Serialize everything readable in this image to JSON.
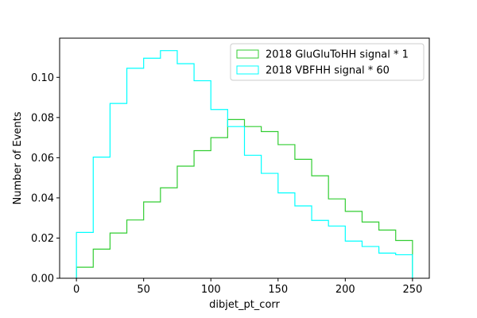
{
  "chart_data": {
    "type": "histogram-step",
    "title": "",
    "xlabel": "dibjet_pt_corr",
    "ylabel": "Number of Events",
    "xlim": [
      -12.5,
      262.5
    ],
    "ylim": [
      0.0,
      0.1195
    ],
    "xticks": [
      0,
      50,
      100,
      150,
      200,
      250
    ],
    "yticks": [
      0.0,
      0.02,
      0.04,
      0.06,
      0.08,
      0.1
    ],
    "xtick_labels": [
      "0",
      "50",
      "100",
      "150",
      "200",
      "250"
    ],
    "ytick_labels": [
      "0.00",
      "0.02",
      "0.04",
      "0.06",
      "0.08",
      "0.10"
    ],
    "bin_edges": [
      0,
      12.5,
      25,
      37.5,
      50,
      62.5,
      75,
      87.5,
      100,
      112.5,
      125,
      137.5,
      150,
      162.5,
      175,
      187.5,
      200,
      212.5,
      225,
      237.5,
      250
    ],
    "series": [
      {
        "name": "2018 GluGluToHH signal * 1",
        "color": "#32cd32",
        "values": [
          0.0055,
          0.0145,
          0.0225,
          0.029,
          0.038,
          0.045,
          0.0558,
          0.0635,
          0.07,
          0.079,
          0.0755,
          0.073,
          0.0665,
          0.0592,
          0.051,
          0.0395,
          0.0333,
          0.028,
          0.024,
          0.0188
        ]
      },
      {
        "name": "2018 VBFHH signal * 60",
        "color": "#00ffff",
        "values": [
          0.0228,
          0.0603,
          0.087,
          0.1045,
          0.1095,
          0.1133,
          0.1068,
          0.0983,
          0.084,
          0.0755,
          0.0612,
          0.0522,
          0.0425,
          0.036,
          0.0288,
          0.026,
          0.0185,
          0.0158,
          0.0125,
          0.0117
        ]
      }
    ],
    "legend_position": "top-right"
  }
}
